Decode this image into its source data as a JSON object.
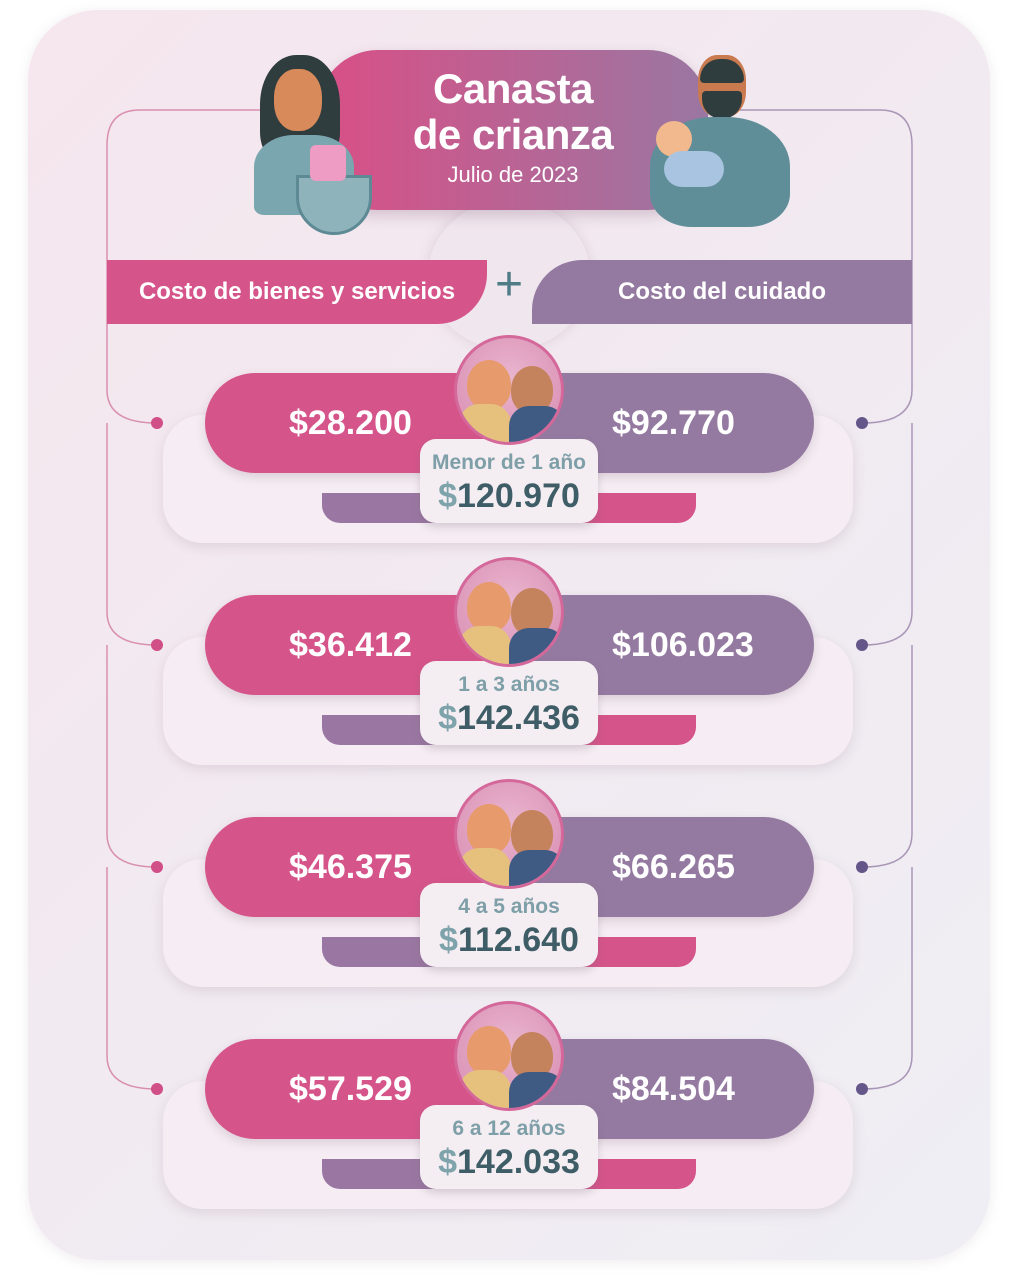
{
  "header": {
    "title_line1": "Canasta",
    "title_line2": "de crianza",
    "subtitle": "Julio de 2023"
  },
  "columns": {
    "left": "Costo de bienes y servicios",
    "plus": "+",
    "right": "Costo del cuidado"
  },
  "currency": "$",
  "rows": [
    {
      "age": "Menor de 1 año",
      "goods": "$28.200",
      "care": "$92.770",
      "total": "120.970"
    },
    {
      "age": "1 a 3 años",
      "goods": "$36.412",
      "care": "$106.023",
      "total": "142.436"
    },
    {
      "age": "4 a 5 años",
      "goods": "$46.375",
      "care": "$66.265",
      "total": "112.640"
    },
    {
      "age": "6 a 12 años",
      "goods": "$57.529",
      "care": "$84.504",
      "total": "142.033"
    }
  ],
  "colors": {
    "pink": "#d5548a",
    "purple": "#947aa0",
    "teal": "#3e5d66",
    "teal_light": "#7e9fa7"
  },
  "icons": [
    "mother-with-basket-illustration",
    "father-with-baby-illustration",
    "children-illustration"
  ]
}
